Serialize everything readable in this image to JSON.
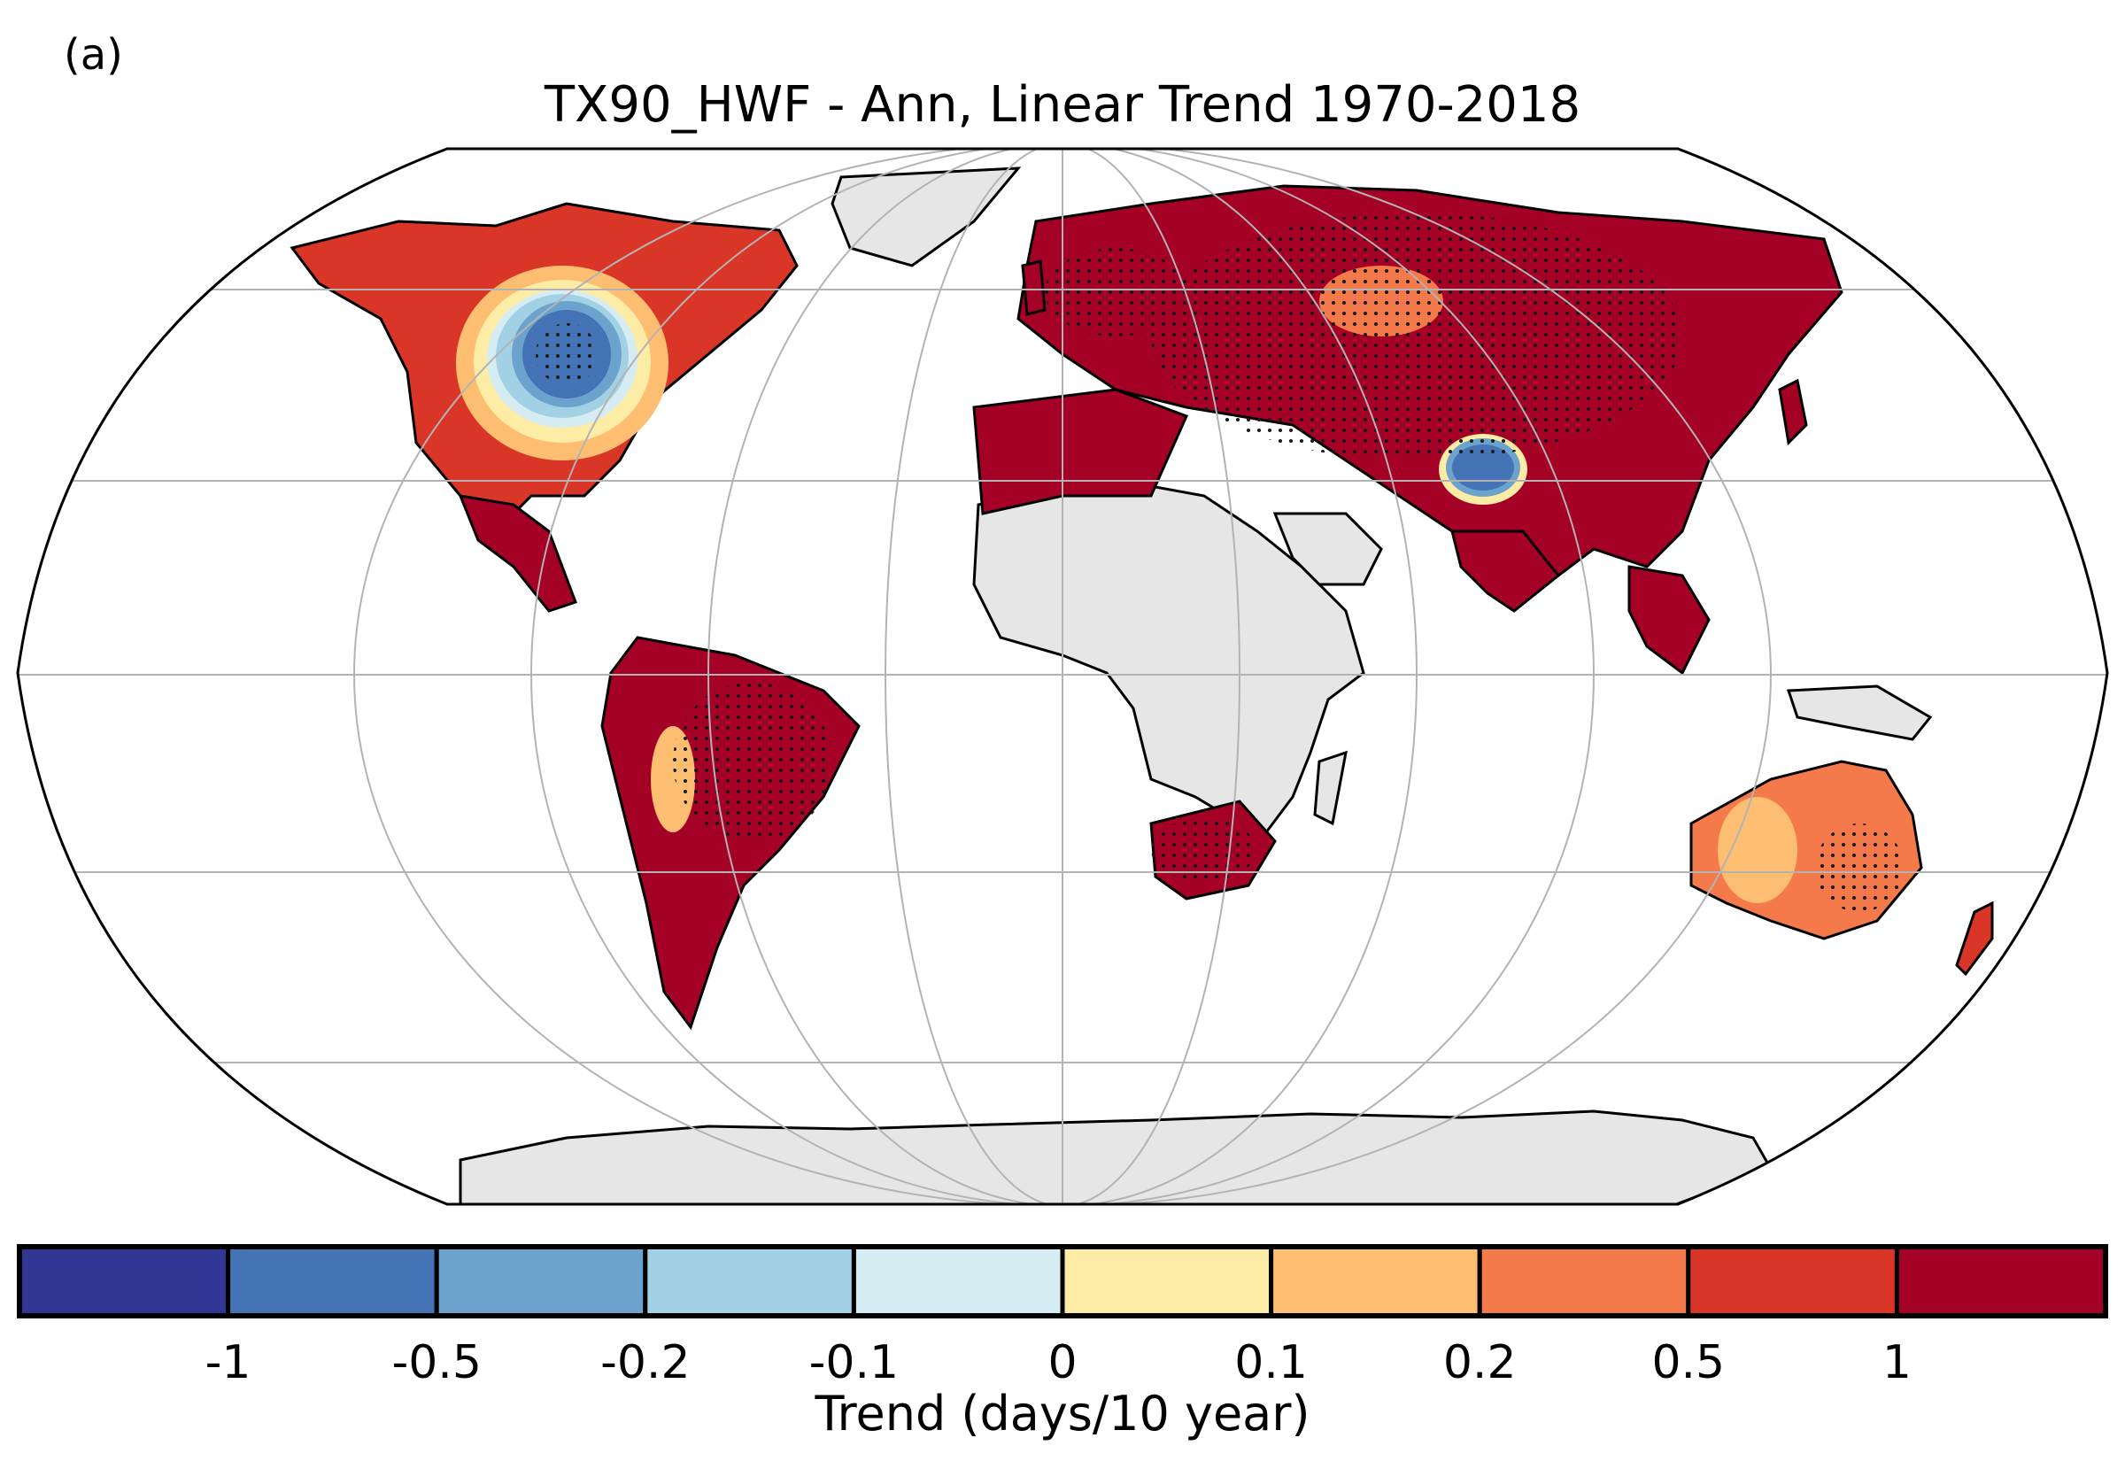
{
  "panel_label": "(a)",
  "title": "TX90_HWF - Ann, Linear Trend 1970-2018",
  "colorbar": {
    "label": "Trend (days/10 year)",
    "ticks": [
      "-1",
      "-0.5",
      "-0.2",
      "-0.1",
      "0",
      "0.1",
      "0.2",
      "0.5",
      "1"
    ],
    "colors": [
      "#313695",
      "#4474b5",
      "#6ba3cc",
      "#a2d0e4",
      "#d6ecf3",
      "#fdeca6",
      "#fdbe71",
      "#f57a4b",
      "#da3628",
      "#a50026"
    ]
  },
  "map": {
    "projection": "Robinson",
    "land_nodata_color": "#e6e6e6",
    "gridlines": "on",
    "stippling": "significant trends"
  }
}
